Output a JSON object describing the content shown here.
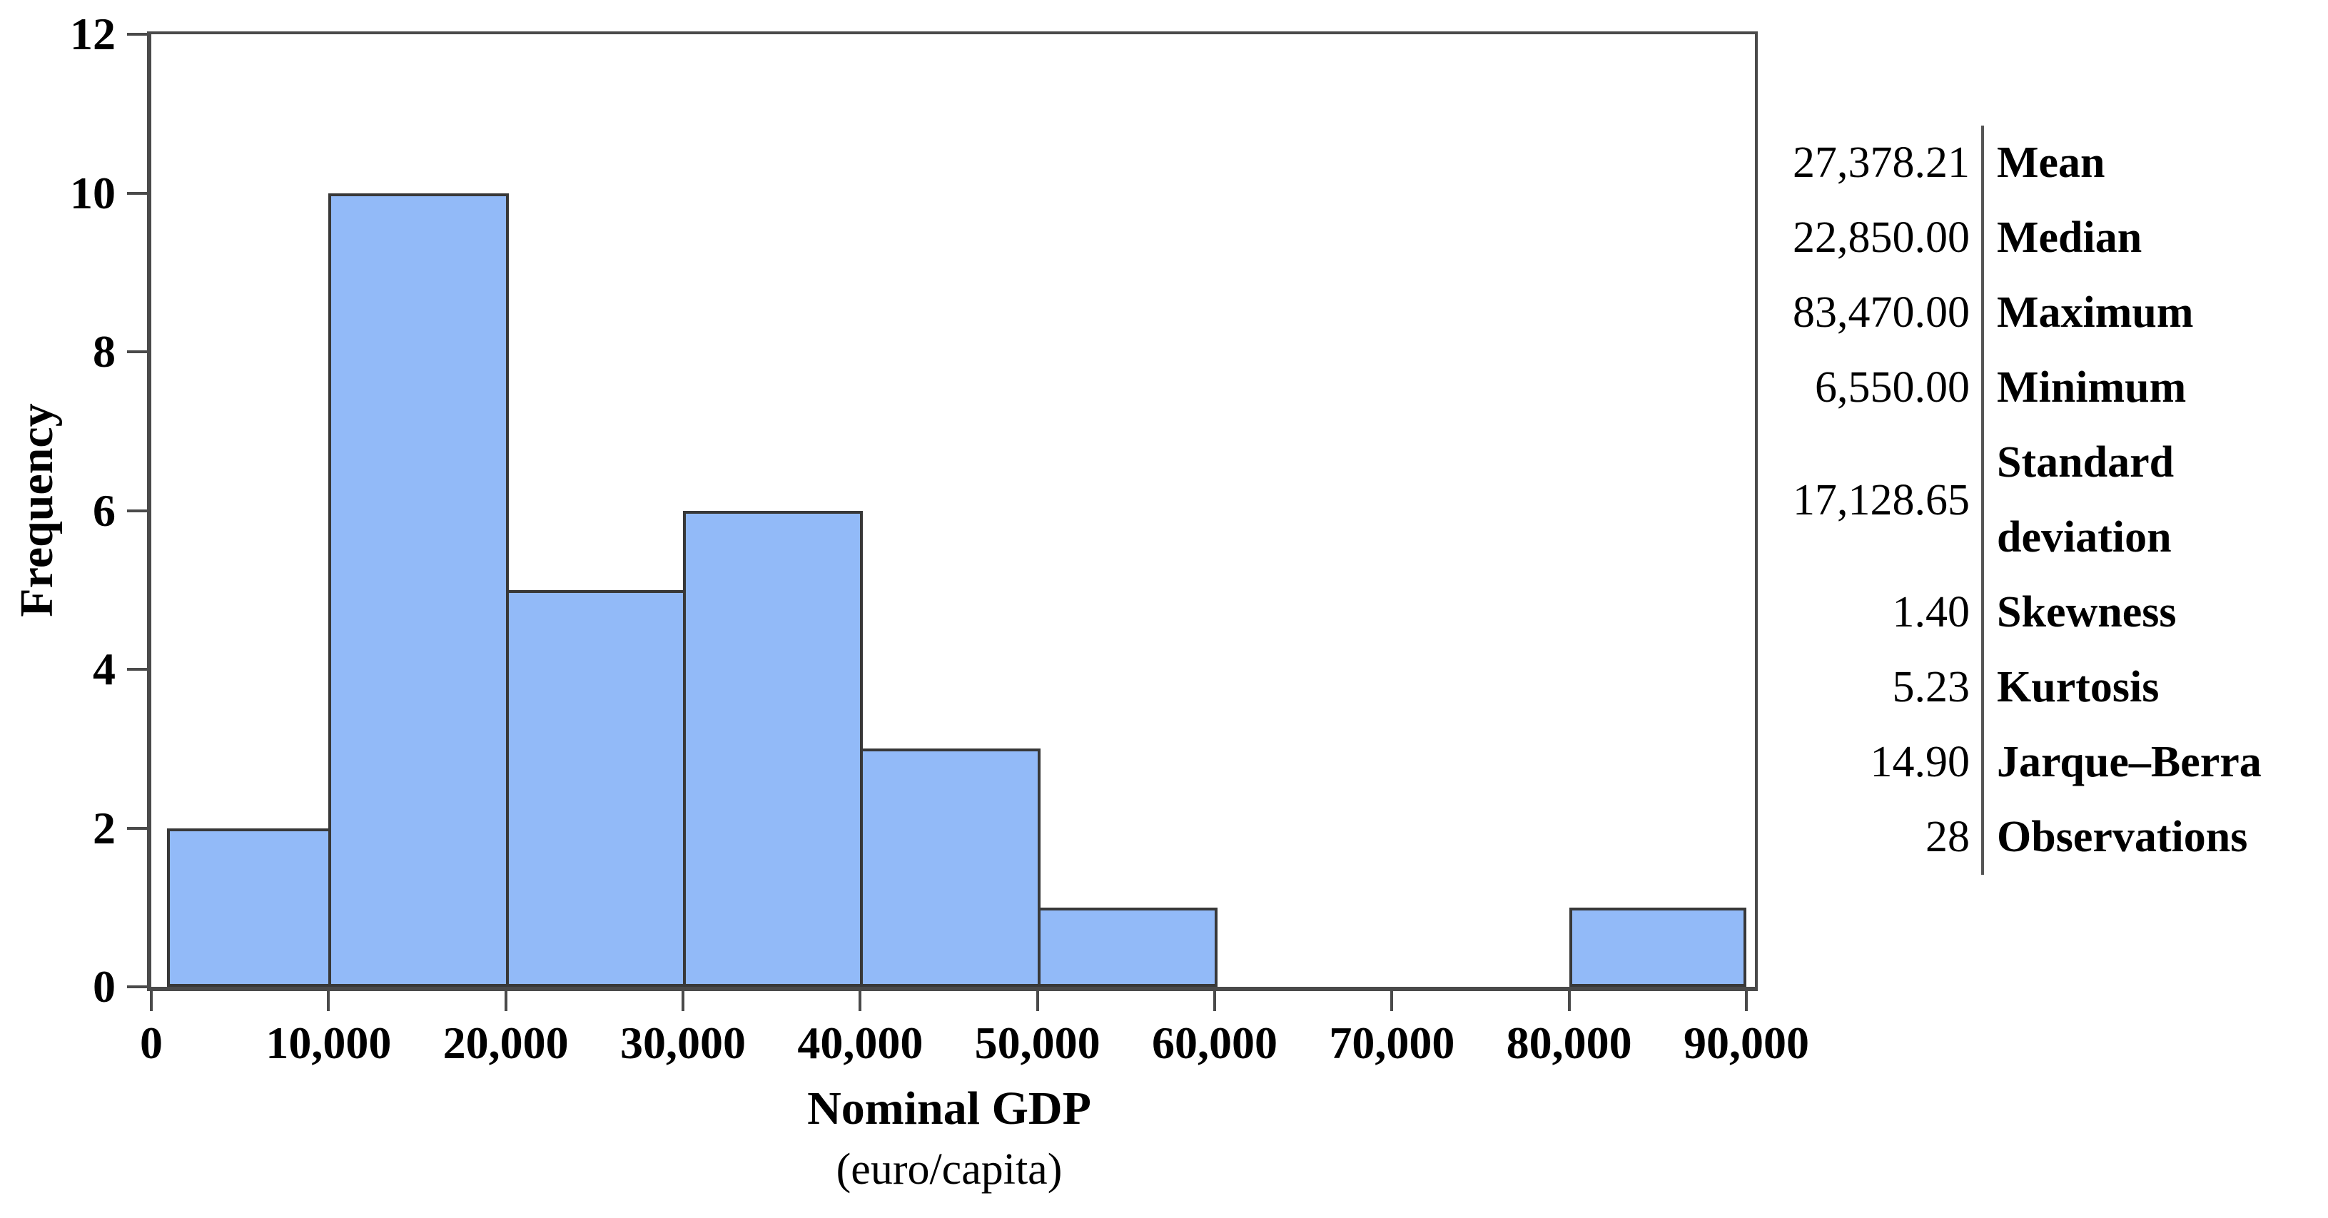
{
  "chart_data": {
    "type": "bar",
    "subtype": "histogram",
    "title": "",
    "xlabel": "Nominal GDP",
    "xlabel_unit": "(euro/capita)",
    "ylabel": "Frequency",
    "bin_edges": [
      0,
      10000,
      20000,
      30000,
      40000,
      50000,
      60000,
      70000,
      80000,
      90000
    ],
    "frequencies": [
      2,
      10,
      5,
      6,
      3,
      1,
      0,
      0,
      1
    ],
    "x_tick_labels": [
      "0",
      "10,000",
      "20,000",
      "30,000",
      "40,000",
      "50,000",
      "60,000",
      "70,000",
      "80,000",
      "90,000"
    ],
    "y_ticks": [
      0,
      2,
      4,
      6,
      8,
      10,
      12
    ],
    "xlim": [
      0,
      90000
    ],
    "ylim": [
      0,
      12
    ],
    "grid": false,
    "legend": null,
    "colors": {
      "bar_fill": "#92baf8",
      "bar_border": "#383838",
      "axis": "#4a4a4a",
      "text": "#000000"
    }
  },
  "stats": {
    "rows": [
      {
        "value": "27,378.21",
        "label": "Mean"
      },
      {
        "value": "22,850.00",
        "label": "Median"
      },
      {
        "value": "83,470.00",
        "label": "Maximum"
      },
      {
        "value": "6,550.00",
        "label": "Minimum"
      },
      {
        "value": "17,128.65",
        "label": "Standard deviation",
        "label_lines": [
          "Standard",
          "deviation"
        ]
      },
      {
        "value": "1.40",
        "label": "Skewness"
      },
      {
        "value": "5.23",
        "label": "Kurtosis"
      },
      {
        "value": "14.90",
        "label": "Jarque–Berra"
      },
      {
        "value": "28",
        "label": "Observations"
      }
    ]
  }
}
